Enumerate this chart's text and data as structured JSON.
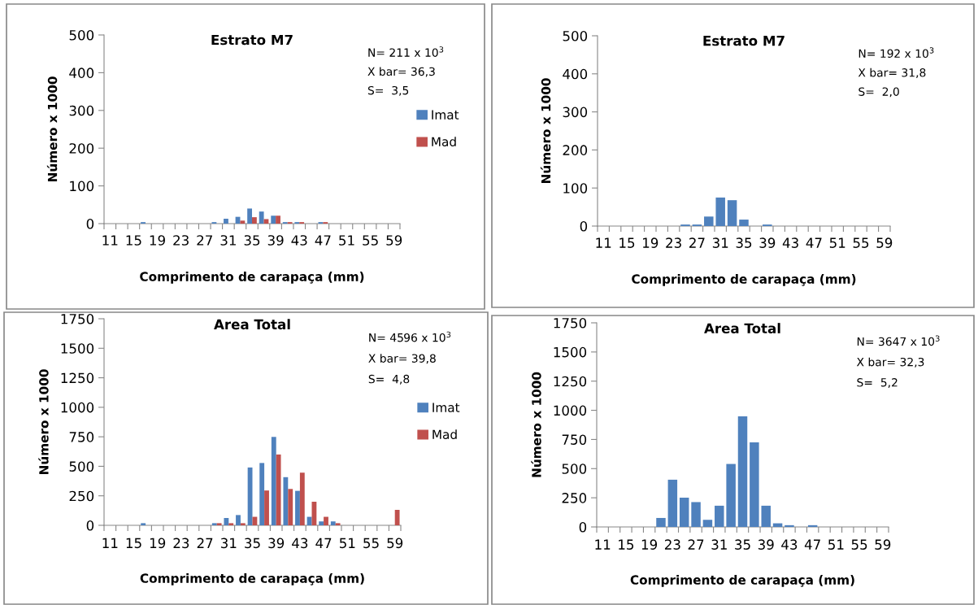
{
  "chart_data": [
    {
      "type": "bar",
      "title": "Estrato M7",
      "xlabel": "Comprimento de carapaça (mm)",
      "ylabel": "Número x 1000",
      "categories": [
        "11",
        null,
        "15",
        null,
        "19",
        null,
        "23",
        null,
        "27",
        null,
        "31",
        null,
        "35",
        null,
        "39",
        null,
        "43",
        null,
        "47",
        null,
        "51",
        null,
        "55",
        null,
        "59"
      ],
      "series": [
        {
          "name": "Imat",
          "color": "#4f81bd",
          "values": [
            0,
            0,
            0,
            4,
            0,
            0,
            0,
            0,
            0,
            4,
            13,
            18,
            40,
            32,
            21,
            4,
            4,
            0,
            4,
            0,
            0,
            0,
            0,
            0,
            0
          ]
        },
        {
          "name": "Mad",
          "color": "#c0504d",
          "values": [
            0,
            0,
            0,
            0,
            0,
            0,
            0,
            0,
            0,
            0,
            0,
            8,
            17,
            12,
            21,
            4,
            4,
            0,
            4,
            0,
            0,
            0,
            0,
            0,
            0
          ]
        }
      ],
      "ylim": [
        0,
        500
      ],
      "yticks": [
        0,
        100,
        200,
        300,
        400,
        500
      ],
      "grid": false,
      "legend": "right",
      "annotations": [
        "N= 211 x 10$^{3}$",
        "X bar= 36,3",
        "S=  3,5"
      ]
    },
    {
      "type": "bar",
      "title": "Estrato M7",
      "xlabel": "Comprimento de carapaça (mm)",
      "ylabel": "Número x 1000",
      "categories": [
        "11",
        null,
        "15",
        null,
        "19",
        null,
        "23",
        null,
        "27",
        null,
        "31",
        null,
        "35",
        null,
        "39",
        null,
        "43",
        null,
        "47",
        null,
        "51",
        null,
        "55",
        null,
        "59"
      ],
      "series": [
        {
          "color": "#4f81bd",
          "values": [
            0,
            0,
            0,
            0,
            0,
            0,
            0,
            4,
            4,
            25,
            75,
            68,
            17,
            0,
            4,
            0,
            0,
            0,
            0,
            0,
            0,
            0,
            0,
            0,
            0
          ]
        }
      ],
      "ylim": [
        0,
        500
      ],
      "yticks": [
        0,
        100,
        200,
        300,
        400,
        500
      ],
      "grid": false,
      "annotations": [
        "N= 192 x 10$^{3}$",
        "X bar= 31,8",
        "S=  2,0"
      ]
    },
    {
      "type": "bar",
      "title": "Area Total",
      "xlabel": "Comprimento de carapaça (mm)",
      "ylabel": "Número x 1000",
      "categories": [
        "11",
        null,
        "15",
        null,
        "19",
        null,
        "23",
        null,
        "27",
        null,
        "31",
        null,
        "35",
        null,
        "39",
        null,
        "43",
        null,
        "47",
        null,
        "51",
        null,
        "55",
        null,
        "59"
      ],
      "series": [
        {
          "name": "Imat",
          "color": "#4f81bd",
          "values": [
            0,
            0,
            0,
            18,
            0,
            0,
            0,
            0,
            0,
            18,
            62,
            87,
            490,
            528,
            749,
            408,
            292,
            72,
            33,
            33,
            0,
            0,
            0,
            0,
            0
          ]
        },
        {
          "name": "Mad",
          "color": "#c0504d",
          "values": [
            0,
            0,
            0,
            0,
            0,
            0,
            0,
            0,
            0,
            18,
            18,
            18,
            72,
            295,
            600,
            308,
            446,
            200,
            72,
            18,
            0,
            0,
            0,
            0,
            131
          ]
        }
      ],
      "ylim": [
        0,
        1750
      ],
      "yticks": [
        0,
        250,
        500,
        750,
        1000,
        1250,
        1500,
        1750
      ],
      "grid": false,
      "legend": "right",
      "annotations": [
        "N= 4596 x 10$^{3}$",
        "X bar= 39,8",
        "S=  4,8"
      ]
    },
    {
      "type": "bar",
      "title": "Area Total",
      "xlabel": "Comprimento de carapaça (mm)",
      "ylabel": "Número x 1000",
      "categories": [
        "11",
        null,
        "15",
        null,
        "19",
        null,
        "23",
        null,
        "27",
        null,
        "31",
        null,
        "35",
        null,
        "39",
        null,
        "43",
        null,
        "47",
        null,
        "51",
        null,
        "55",
        null,
        "59"
      ],
      "series": [
        {
          "color": "#4f81bd",
          "values": [
            0,
            0,
            0,
            0,
            0,
            77,
            405,
            251,
            213,
            61,
            182,
            540,
            948,
            725,
            182,
            31,
            15,
            0,
            15,
            0,
            0,
            0,
            0,
            0,
            0
          ]
        }
      ],
      "ylim": [
        0,
        1750
      ],
      "yticks": [
        0,
        250,
        500,
        750,
        1000,
        1250,
        1500,
        1750
      ],
      "grid": false,
      "annotations": [
        "N= 3647 x 10$^{3}$",
        "X bar= 32,3",
        "S=  5,2"
      ]
    }
  ]
}
